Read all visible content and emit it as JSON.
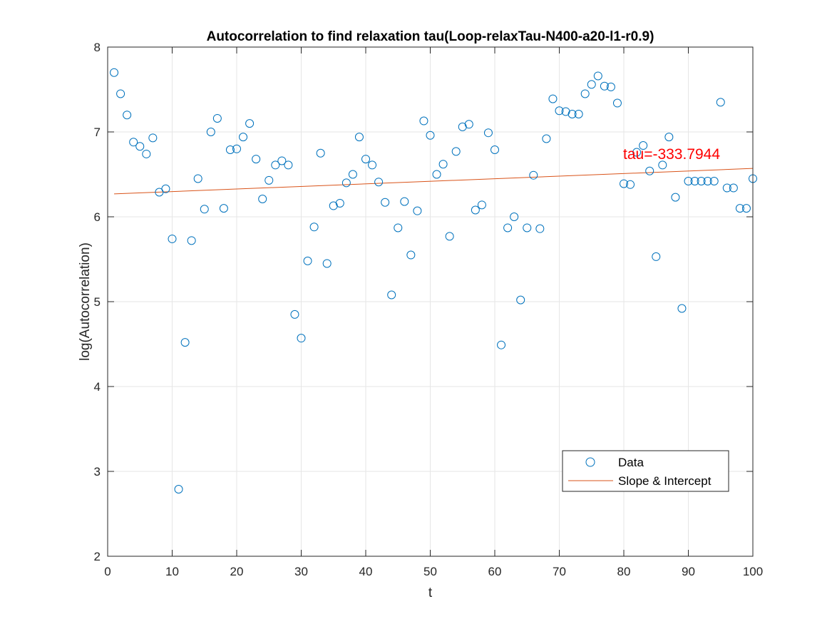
{
  "chart_data": {
    "type": "scatter",
    "title": "Autocorrelation to find relaxation tau(Loop-relaxTau-N400-a20-l1-r0.9)",
    "xlabel": "t",
    "ylabel": "log(Autocorrelation)",
    "xlim": [
      0,
      100
    ],
    "ylim": [
      2,
      8
    ],
    "xticks": [
      0,
      10,
      20,
      30,
      40,
      50,
      60,
      70,
      80,
      90,
      100
    ],
    "yticks": [
      2,
      3,
      4,
      5,
      6,
      7,
      8
    ],
    "grid": true,
    "legend_location": "lower-right",
    "series": [
      {
        "name": "Data",
        "kind": "markers",
        "marker": "circle",
        "color": "#0072BD",
        "x": [
          1,
          2,
          3,
          4,
          5,
          6,
          7,
          8,
          9,
          10,
          11,
          12,
          13,
          14,
          15,
          16,
          17,
          18,
          19,
          20,
          21,
          22,
          23,
          24,
          25,
          26,
          27,
          28,
          29,
          30,
          31,
          32,
          33,
          34,
          35,
          36,
          37,
          38,
          39,
          40,
          41,
          42,
          43,
          44,
          45,
          46,
          47,
          48,
          49,
          50,
          51,
          52,
          53,
          54,
          55,
          56,
          57,
          58,
          59,
          60,
          61,
          62,
          63,
          64,
          65,
          66,
          67,
          68,
          69,
          70,
          71,
          72,
          73,
          74,
          75,
          76,
          77,
          78,
          79,
          80,
          81,
          82,
          83,
          84,
          85,
          86,
          87,
          88,
          89,
          90,
          91,
          92,
          93,
          94,
          95,
          96,
          97,
          98,
          99,
          100
        ],
        "y": [
          7.7,
          7.45,
          7.2,
          6.88,
          6.83,
          6.74,
          6.93,
          6.29,
          6.33,
          5.74,
          2.79,
          4.52,
          5.72,
          6.45,
          6.09,
          7.0,
          7.16,
          6.1,
          6.79,
          6.8,
          6.94,
          7.1,
          6.68,
          6.21,
          6.43,
          6.61,
          6.66,
          6.61,
          4.85,
          4.57,
          5.48,
          5.88,
          6.75,
          5.45,
          6.13,
          6.16,
          6.4,
          6.5,
          6.94,
          6.68,
          6.61,
          6.41,
          6.17,
          5.08,
          5.87,
          6.18,
          5.55,
          6.07,
          7.13,
          6.96,
          6.5,
          6.62,
          5.77,
          6.77,
          7.06,
          7.09,
          6.08,
          6.14,
          6.99,
          6.79,
          4.49,
          5.87,
          6.0,
          5.02,
          5.87,
          6.49,
          5.86,
          6.92,
          7.39,
          7.25,
          7.24,
          7.21,
          7.21,
          7.45,
          7.56,
          7.66,
          7.54,
          7.53,
          7.34,
          6.39,
          6.38,
          6.76,
          6.84,
          6.54,
          5.53,
          6.61,
          6.94,
          6.23,
          4.92,
          6.42,
          6.42,
          6.42,
          6.42,
          6.42,
          7.35,
          6.34,
          6.34,
          6.1,
          6.1,
          6.45
        ]
      },
      {
        "name": "Slope & Intercept",
        "kind": "line",
        "color": "#D95319",
        "x": [
          1,
          100
        ],
        "y": [
          6.27,
          6.57
        ]
      }
    ],
    "annotations": [
      {
        "text": "tau=-333.7944",
        "x": 80,
        "y": 6.74,
        "color": "#FF0000"
      }
    ]
  }
}
